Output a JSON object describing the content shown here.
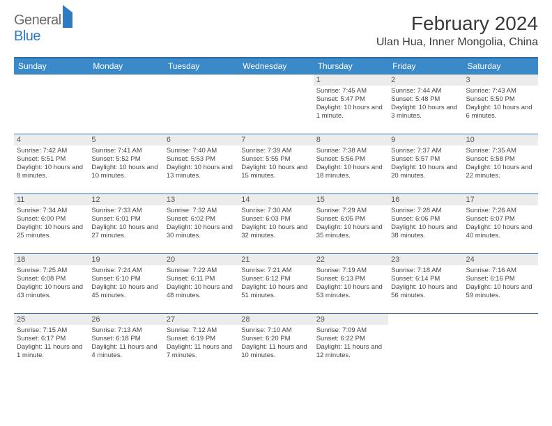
{
  "logo": {
    "text1": "General",
    "text2": "Blue"
  },
  "title": "February 2024",
  "location": "Ulan Hua, Inner Mongolia, China",
  "colors": {
    "header_bg": "#3a89c9",
    "header_border": "#2f6ea3",
    "daybar_bg": "#ececec",
    "logo_gray": "#6b6b6b",
    "logo_blue": "#2f7bc2"
  },
  "weekdays": [
    "Sunday",
    "Monday",
    "Tuesday",
    "Wednesday",
    "Thursday",
    "Friday",
    "Saturday"
  ],
  "weeks": [
    [
      {
        "day": "",
        "sunrise": "",
        "sunset": "",
        "daylight": ""
      },
      {
        "day": "",
        "sunrise": "",
        "sunset": "",
        "daylight": ""
      },
      {
        "day": "",
        "sunrise": "",
        "sunset": "",
        "daylight": ""
      },
      {
        "day": "",
        "sunrise": "",
        "sunset": "",
        "daylight": ""
      },
      {
        "day": "1",
        "sunrise": "Sunrise: 7:45 AM",
        "sunset": "Sunset: 5:47 PM",
        "daylight": "Daylight: 10 hours and 1 minute."
      },
      {
        "day": "2",
        "sunrise": "Sunrise: 7:44 AM",
        "sunset": "Sunset: 5:48 PM",
        "daylight": "Daylight: 10 hours and 3 minutes."
      },
      {
        "day": "3",
        "sunrise": "Sunrise: 7:43 AM",
        "sunset": "Sunset: 5:50 PM",
        "daylight": "Daylight: 10 hours and 6 minutes."
      }
    ],
    [
      {
        "day": "4",
        "sunrise": "Sunrise: 7:42 AM",
        "sunset": "Sunset: 5:51 PM",
        "daylight": "Daylight: 10 hours and 8 minutes."
      },
      {
        "day": "5",
        "sunrise": "Sunrise: 7:41 AM",
        "sunset": "Sunset: 5:52 PM",
        "daylight": "Daylight: 10 hours and 10 minutes."
      },
      {
        "day": "6",
        "sunrise": "Sunrise: 7:40 AM",
        "sunset": "Sunset: 5:53 PM",
        "daylight": "Daylight: 10 hours and 13 minutes."
      },
      {
        "day": "7",
        "sunrise": "Sunrise: 7:39 AM",
        "sunset": "Sunset: 5:55 PM",
        "daylight": "Daylight: 10 hours and 15 minutes."
      },
      {
        "day": "8",
        "sunrise": "Sunrise: 7:38 AM",
        "sunset": "Sunset: 5:56 PM",
        "daylight": "Daylight: 10 hours and 18 minutes."
      },
      {
        "day": "9",
        "sunrise": "Sunrise: 7:37 AM",
        "sunset": "Sunset: 5:57 PM",
        "daylight": "Daylight: 10 hours and 20 minutes."
      },
      {
        "day": "10",
        "sunrise": "Sunrise: 7:35 AM",
        "sunset": "Sunset: 5:58 PM",
        "daylight": "Daylight: 10 hours and 22 minutes."
      }
    ],
    [
      {
        "day": "11",
        "sunrise": "Sunrise: 7:34 AM",
        "sunset": "Sunset: 6:00 PM",
        "daylight": "Daylight: 10 hours and 25 minutes."
      },
      {
        "day": "12",
        "sunrise": "Sunrise: 7:33 AM",
        "sunset": "Sunset: 6:01 PM",
        "daylight": "Daylight: 10 hours and 27 minutes."
      },
      {
        "day": "13",
        "sunrise": "Sunrise: 7:32 AM",
        "sunset": "Sunset: 6:02 PM",
        "daylight": "Daylight: 10 hours and 30 minutes."
      },
      {
        "day": "14",
        "sunrise": "Sunrise: 7:30 AM",
        "sunset": "Sunset: 6:03 PM",
        "daylight": "Daylight: 10 hours and 32 minutes."
      },
      {
        "day": "15",
        "sunrise": "Sunrise: 7:29 AM",
        "sunset": "Sunset: 6:05 PM",
        "daylight": "Daylight: 10 hours and 35 minutes."
      },
      {
        "day": "16",
        "sunrise": "Sunrise: 7:28 AM",
        "sunset": "Sunset: 6:06 PM",
        "daylight": "Daylight: 10 hours and 38 minutes."
      },
      {
        "day": "17",
        "sunrise": "Sunrise: 7:26 AM",
        "sunset": "Sunset: 6:07 PM",
        "daylight": "Daylight: 10 hours and 40 minutes."
      }
    ],
    [
      {
        "day": "18",
        "sunrise": "Sunrise: 7:25 AM",
        "sunset": "Sunset: 6:08 PM",
        "daylight": "Daylight: 10 hours and 43 minutes."
      },
      {
        "day": "19",
        "sunrise": "Sunrise: 7:24 AM",
        "sunset": "Sunset: 6:10 PM",
        "daylight": "Daylight: 10 hours and 45 minutes."
      },
      {
        "day": "20",
        "sunrise": "Sunrise: 7:22 AM",
        "sunset": "Sunset: 6:11 PM",
        "daylight": "Daylight: 10 hours and 48 minutes."
      },
      {
        "day": "21",
        "sunrise": "Sunrise: 7:21 AM",
        "sunset": "Sunset: 6:12 PM",
        "daylight": "Daylight: 10 hours and 51 minutes."
      },
      {
        "day": "22",
        "sunrise": "Sunrise: 7:19 AM",
        "sunset": "Sunset: 6:13 PM",
        "daylight": "Daylight: 10 hours and 53 minutes."
      },
      {
        "day": "23",
        "sunrise": "Sunrise: 7:18 AM",
        "sunset": "Sunset: 6:14 PM",
        "daylight": "Daylight: 10 hours and 56 minutes."
      },
      {
        "day": "24",
        "sunrise": "Sunrise: 7:16 AM",
        "sunset": "Sunset: 6:16 PM",
        "daylight": "Daylight: 10 hours and 59 minutes."
      }
    ],
    [
      {
        "day": "25",
        "sunrise": "Sunrise: 7:15 AM",
        "sunset": "Sunset: 6:17 PM",
        "daylight": "Daylight: 11 hours and 1 minute."
      },
      {
        "day": "26",
        "sunrise": "Sunrise: 7:13 AM",
        "sunset": "Sunset: 6:18 PM",
        "daylight": "Daylight: 11 hours and 4 minutes."
      },
      {
        "day": "27",
        "sunrise": "Sunrise: 7:12 AM",
        "sunset": "Sunset: 6:19 PM",
        "daylight": "Daylight: 11 hours and 7 minutes."
      },
      {
        "day": "28",
        "sunrise": "Sunrise: 7:10 AM",
        "sunset": "Sunset: 6:20 PM",
        "daylight": "Daylight: 11 hours and 10 minutes."
      },
      {
        "day": "29",
        "sunrise": "Sunrise: 7:09 AM",
        "sunset": "Sunset: 6:22 PM",
        "daylight": "Daylight: 11 hours and 12 minutes."
      },
      {
        "day": "",
        "sunrise": "",
        "sunset": "",
        "daylight": ""
      },
      {
        "day": "",
        "sunrise": "",
        "sunset": "",
        "daylight": ""
      }
    ]
  ]
}
